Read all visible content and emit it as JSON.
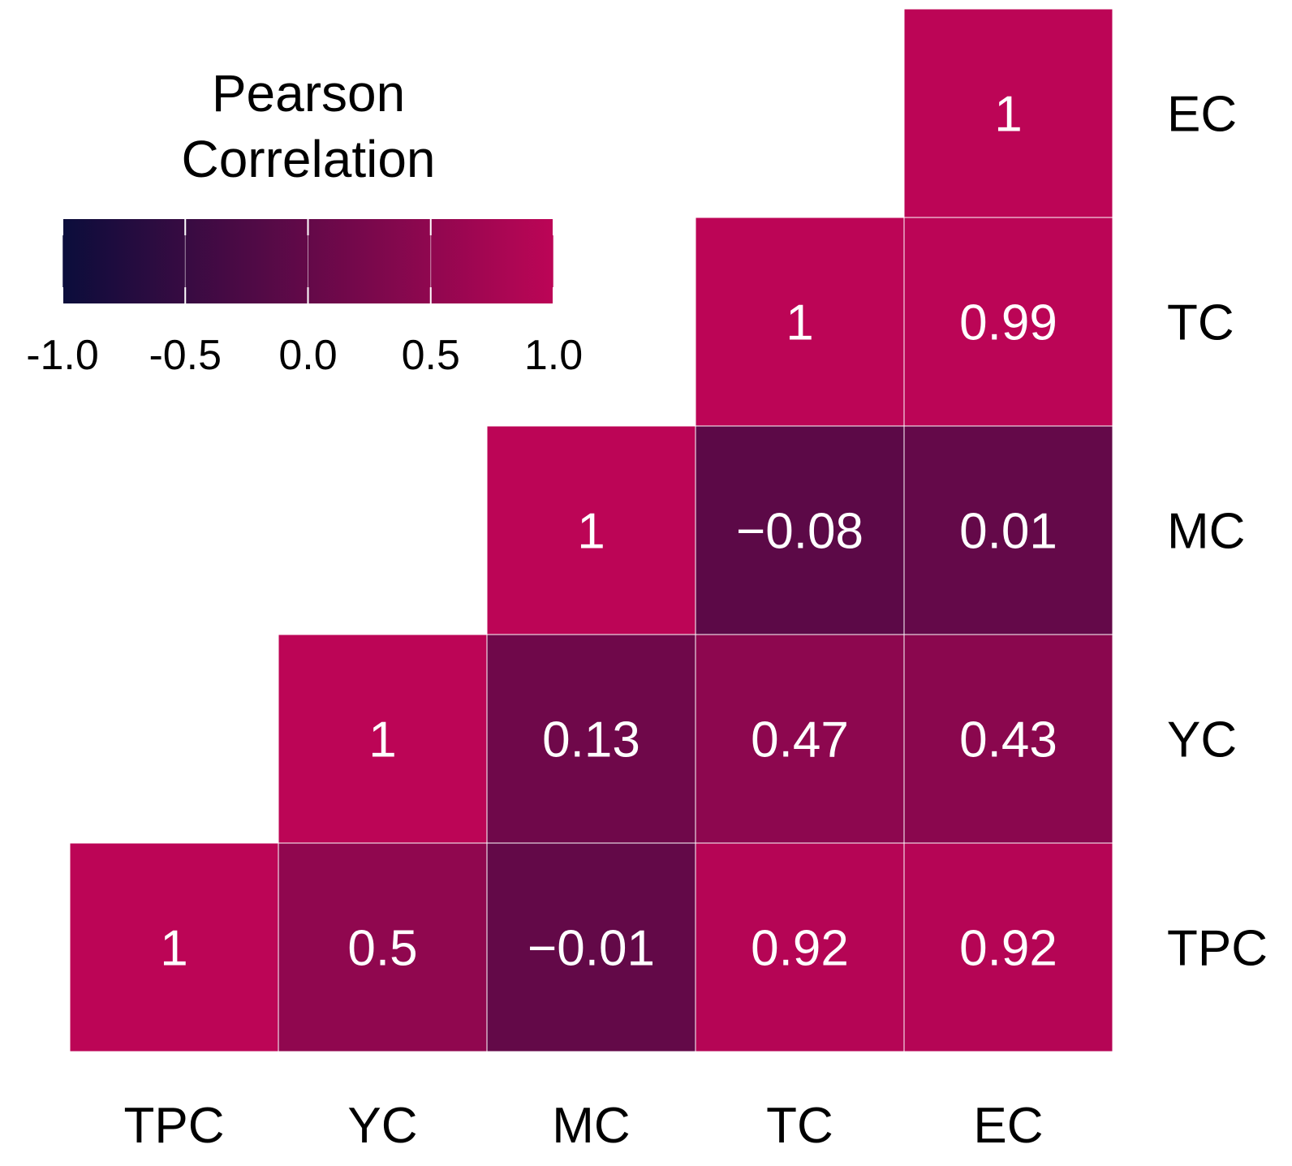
{
  "chart_data": {
    "type": "heatmap",
    "variables": [
      "TPC",
      "YC",
      "MC",
      "TC",
      "EC"
    ],
    "x_categories": [
      "TPC",
      "YC",
      "MC",
      "TC",
      "EC"
    ],
    "y_categories": [
      "EC",
      "TC",
      "MC",
      "YC",
      "TPC"
    ],
    "cells": [
      {
        "x": "EC",
        "y": "EC",
        "value": 1,
        "label": "1"
      },
      {
        "x": "TC",
        "y": "TC",
        "value": 1,
        "label": "1"
      },
      {
        "x": "EC",
        "y": "TC",
        "value": 0.99,
        "label": "0.99"
      },
      {
        "x": "MC",
        "y": "MC",
        "value": 1,
        "label": "1"
      },
      {
        "x": "TC",
        "y": "MC",
        "value": -0.08,
        "label": "−0.08"
      },
      {
        "x": "EC",
        "y": "MC",
        "value": 0.01,
        "label": "0.01"
      },
      {
        "x": "YC",
        "y": "YC",
        "value": 1,
        "label": "1"
      },
      {
        "x": "MC",
        "y": "YC",
        "value": 0.13,
        "label": "0.13"
      },
      {
        "x": "TC",
        "y": "YC",
        "value": 0.47,
        "label": "0.47"
      },
      {
        "x": "EC",
        "y": "YC",
        "value": 0.43,
        "label": "0.43"
      },
      {
        "x": "TPC",
        "y": "TPC",
        "value": 1,
        "label": "1"
      },
      {
        "x": "YC",
        "y": "TPC",
        "value": 0.5,
        "label": "0.5"
      },
      {
        "x": "MC",
        "y": "TPC",
        "value": -0.01,
        "label": "−0.01"
      },
      {
        "x": "TC",
        "y": "TPC",
        "value": 0.92,
        "label": "0.92"
      },
      {
        "x": "EC",
        "y": "TPC",
        "value": 0.92,
        "label": "0.92"
      }
    ],
    "legend": {
      "title_lines": [
        "Pearson",
        "Correlation"
      ],
      "range": [
        -1.0,
        1.0
      ],
      "ticks": [
        -1.0,
        -0.5,
        0.0,
        0.5,
        1.0
      ],
      "tick_labels": [
        "-1.0",
        "-0.5",
        "0.0",
        "0.5",
        "1.0"
      ],
      "position": "top-left"
    },
    "colors": {
      "low": "#0b0d3b",
      "high": "#bc0556",
      "cell_text": "#ffffff",
      "grid": "#ffffff"
    }
  }
}
